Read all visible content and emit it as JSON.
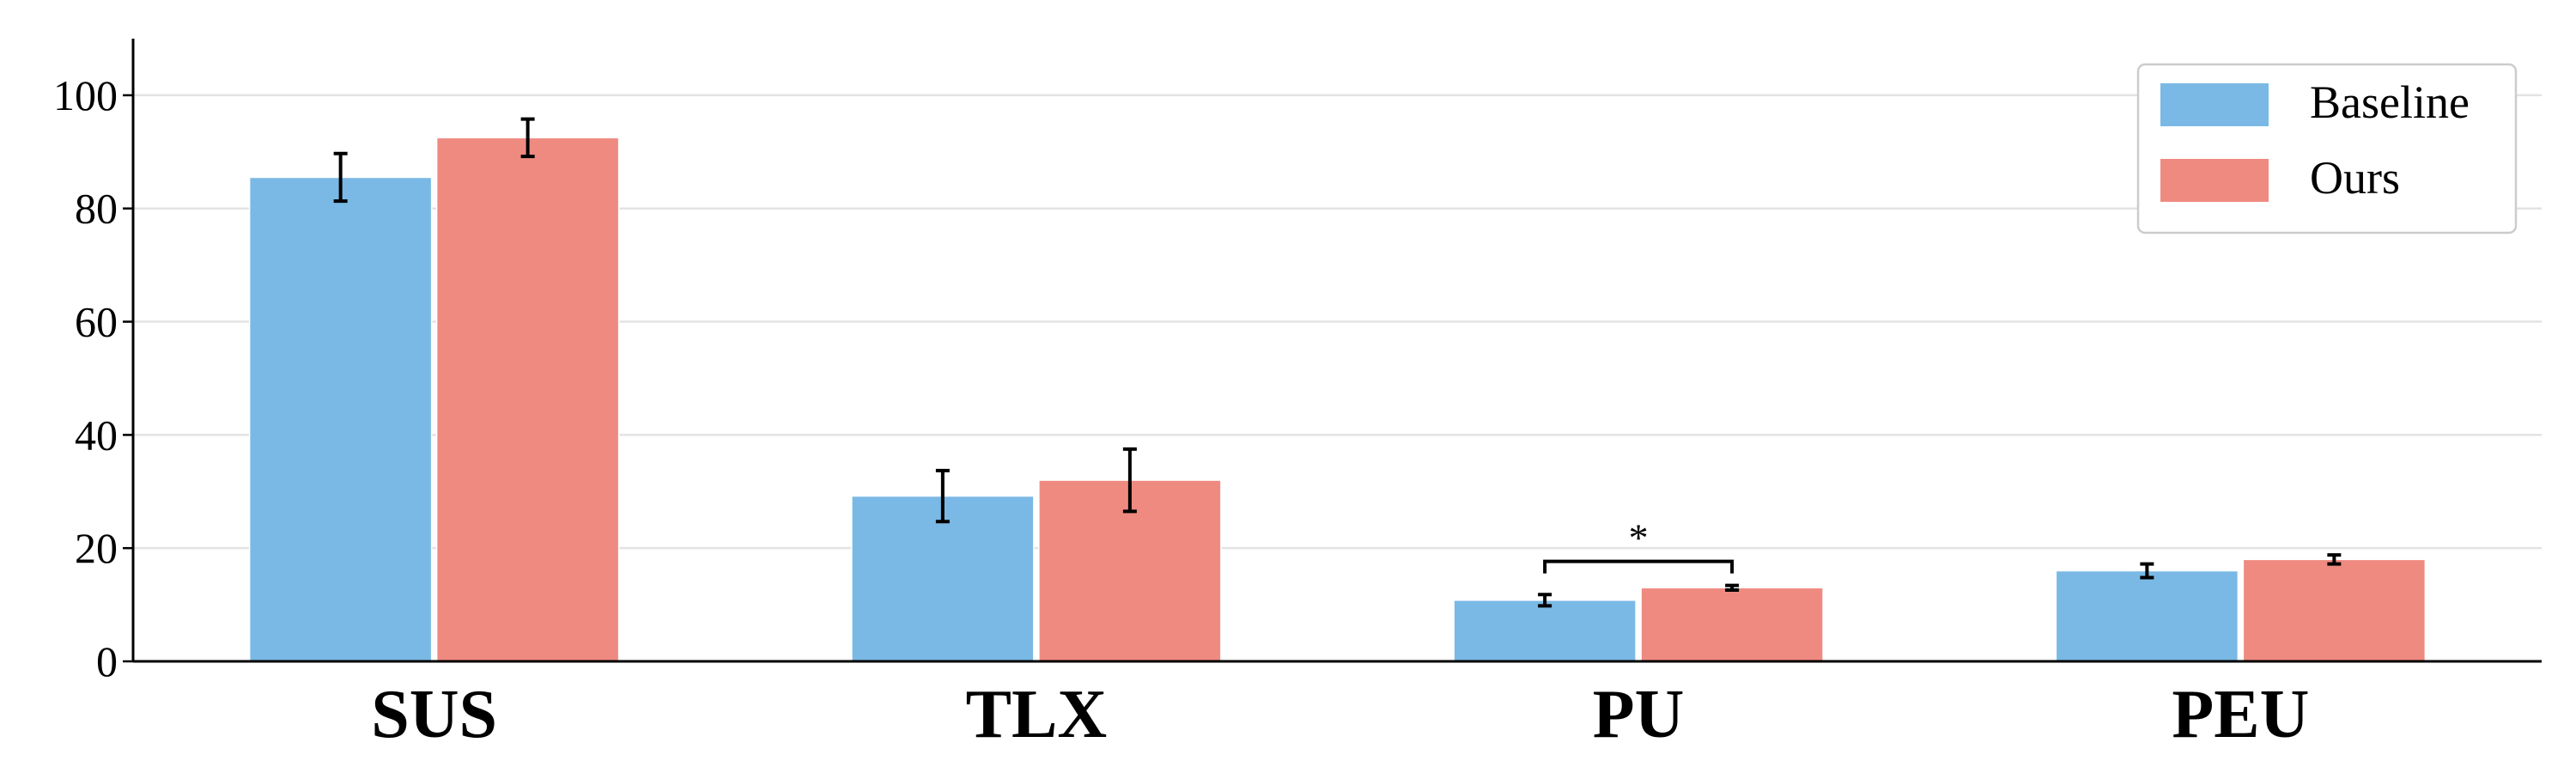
{
  "chart_data": {
    "type": "bar",
    "title": "",
    "xlabel": "",
    "ylabel": "",
    "categories": [
      "SUS",
      "TLX",
      "PU",
      "PEU"
    ],
    "series": [
      {
        "name": "Baseline",
        "color": "#7ab9e5",
        "values": [
          85.5,
          29.2,
          10.8,
          16.0
        ],
        "errors": [
          4.2,
          4.5,
          1.0,
          1.2
        ]
      },
      {
        "name": "Ours",
        "color": "#ef8a80",
        "values": [
          92.5,
          32.0,
          13.0,
          18.0
        ],
        "errors": [
          3.3,
          5.5,
          0.4,
          0.8
        ]
      }
    ],
    "ylim": [
      0,
      110
    ],
    "yticks": [
      0,
      20,
      40,
      60,
      80,
      100
    ],
    "grid": true,
    "legend_position": "top-right",
    "annotations": [
      {
        "type": "significance",
        "category": "PU",
        "label": "*"
      }
    ]
  }
}
